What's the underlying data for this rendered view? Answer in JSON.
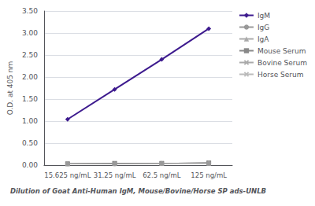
{
  "chart_data": {
    "type": "line",
    "categories": [
      "15.625 ng/mL",
      "31.25 ng/mL",
      "62.5 ng/mL",
      "125 ng/mL"
    ],
    "series": [
      {
        "name": "IgM",
        "color": "#3d1a8e",
        "marker": "diamond",
        "values": [
          1.04,
          1.72,
          2.4,
          3.1
        ]
      },
      {
        "name": "IgG",
        "color": "#999999",
        "marker": "circle",
        "values": [
          0.03,
          0.03,
          0.04,
          0.04
        ]
      },
      {
        "name": "IgA",
        "color": "#aaaaaa",
        "marker": "triangle",
        "values": [
          0.03,
          0.03,
          0.04,
          0.04
        ]
      },
      {
        "name": "Mouse Serum",
        "color": "#888888",
        "marker": "square",
        "values": [
          0.03,
          0.04,
          0.04,
          0.05
        ]
      },
      {
        "name": "Bovine Serum",
        "color": "#aaaaaa",
        "marker": "x",
        "values": [
          0.03,
          0.04,
          0.04,
          0.05
        ]
      },
      {
        "name": "Horse Serum",
        "color": "#bbbbbb",
        "marker": "x",
        "values": [
          0.03,
          0.04,
          0.04,
          0.05
        ]
      }
    ],
    "ylabel": "O.D. at 405 nm",
    "xlabel": "Dilution of Goat Anti-Human IgM, Mouse/Bovine/Horse SP ads-UNLB",
    "ylim": [
      0.0,
      3.5
    ],
    "yticks": [
      {
        "value": 0,
        "label": "0.00"
      },
      {
        "value": 0.5,
        "label": "0.50"
      },
      {
        "value": 1,
        "label": "1.00"
      },
      {
        "value": 1.5,
        "label": "1.50"
      },
      {
        "value": 2,
        "label": "2.00"
      },
      {
        "value": 2.5,
        "label": "2.50"
      },
      {
        "value": 3,
        "label": "3.00"
      },
      {
        "value": 3.5,
        "label": "3.50"
      }
    ],
    "grid": true,
    "legend": "right"
  }
}
